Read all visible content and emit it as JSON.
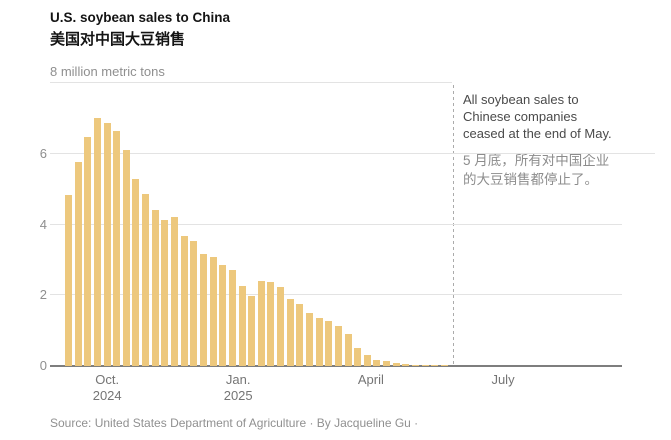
{
  "chart_data": {
    "type": "bar",
    "title": "U.S. soybean sales to China",
    "title_zh": "美国对中国大豆销售",
    "unit_label": "8 million metric tons",
    "ylabel": "million metric tons",
    "ylim": [
      0,
      8
    ],
    "y_ticks": [
      0,
      2,
      4,
      6
    ],
    "grid": true,
    "bar_color": "#edc87d",
    "values": [
      4.83,
      5.78,
      6.47,
      7.0,
      6.88,
      6.65,
      6.12,
      5.3,
      4.85,
      4.4,
      4.12,
      4.22,
      3.68,
      3.53,
      3.17,
      3.08,
      2.86,
      2.72,
      2.26,
      1.98,
      2.39,
      2.37,
      2.22,
      1.89,
      1.76,
      1.5,
      1.37,
      1.27,
      1.13,
      0.9,
      0.5,
      0.32,
      0.17,
      0.13,
      0.08,
      0.05,
      0.03,
      0.03,
      0.03,
      0.02
    ],
    "x_axis": {
      "ticks": [
        {
          "label": "Oct.",
          "year": "2024",
          "pct": 10.0
        },
        {
          "label": "Jan.",
          "year": "2025",
          "pct": 32.9
        },
        {
          "label": "April",
          "year": "",
          "pct": 56.1
        },
        {
          "label": "July",
          "year": "",
          "pct": 79.2
        }
      ]
    },
    "annotation": {
      "pct": 70.45,
      "lines_en": [
        "All soybean sales to",
        "Chinese companies",
        "ceased at the end of May."
      ],
      "lines_zh": [
        "5 月底，所有对中国企业",
        "的大豆销售都停止了。"
      ]
    }
  },
  "footer": {
    "source": "Source: United States Department of Agriculture · By Jacqueline Gu ·"
  }
}
